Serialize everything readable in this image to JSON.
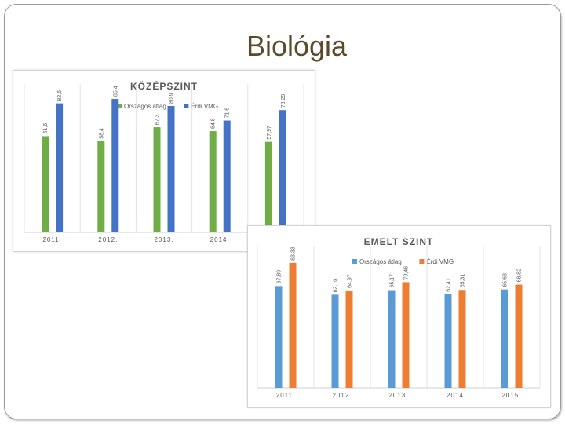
{
  "slide": {
    "title": "Biológia"
  },
  "chart_data": [
    {
      "type": "bar",
      "title": "KÖZÉPSZINT",
      "categories": [
        "2011.",
        "2012.",
        "2013.",
        "2014.",
        "2015."
      ],
      "series": [
        {
          "name": "Országos átlag",
          "color": "#70ad47",
          "values": [
            61.6,
            58.4,
            67.3,
            64.8,
            57.97
          ],
          "labels": [
            "61,6",
            "58,4",
            "67,3",
            "64,8",
            "57,97"
          ]
        },
        {
          "name": "Érdi VMG",
          "color": "#4472c4",
          "values": [
            82.6,
            85.4,
            80.9,
            71.6,
            78.29
          ],
          "labels": [
            "82,6",
            "85,4",
            "80,9",
            "71,6",
            "78,29"
          ]
        }
      ],
      "ylim": [
        0,
        100
      ],
      "grid": "vertical category separators",
      "legend": "top-center"
    },
    {
      "type": "bar",
      "title": "EMELT SZINT",
      "categories": [
        "2011.",
        "2012.",
        "2013.",
        "2014",
        "2015."
      ],
      "series": [
        {
          "name": "Országos átlag",
          "color": "#5b9bd5",
          "values": [
            67.89,
            62.1,
            65.17,
            62.41,
            65.63
          ],
          "labels": [
            "67,89",
            "62,10",
            "65,17",
            "62,41",
            "65,63"
          ]
        },
        {
          "name": "Érdi VMG",
          "color": "#ed7d31",
          "values": [
            83.33,
            64.97,
            70.46,
            65.31,
            68.82
          ],
          "labels": [
            "83,33",
            "64,97",
            "70,46",
            "65,31",
            "68,82"
          ]
        }
      ],
      "ylim": [
        0,
        100
      ],
      "grid": "vertical category separators",
      "legend": "top-center"
    }
  ]
}
